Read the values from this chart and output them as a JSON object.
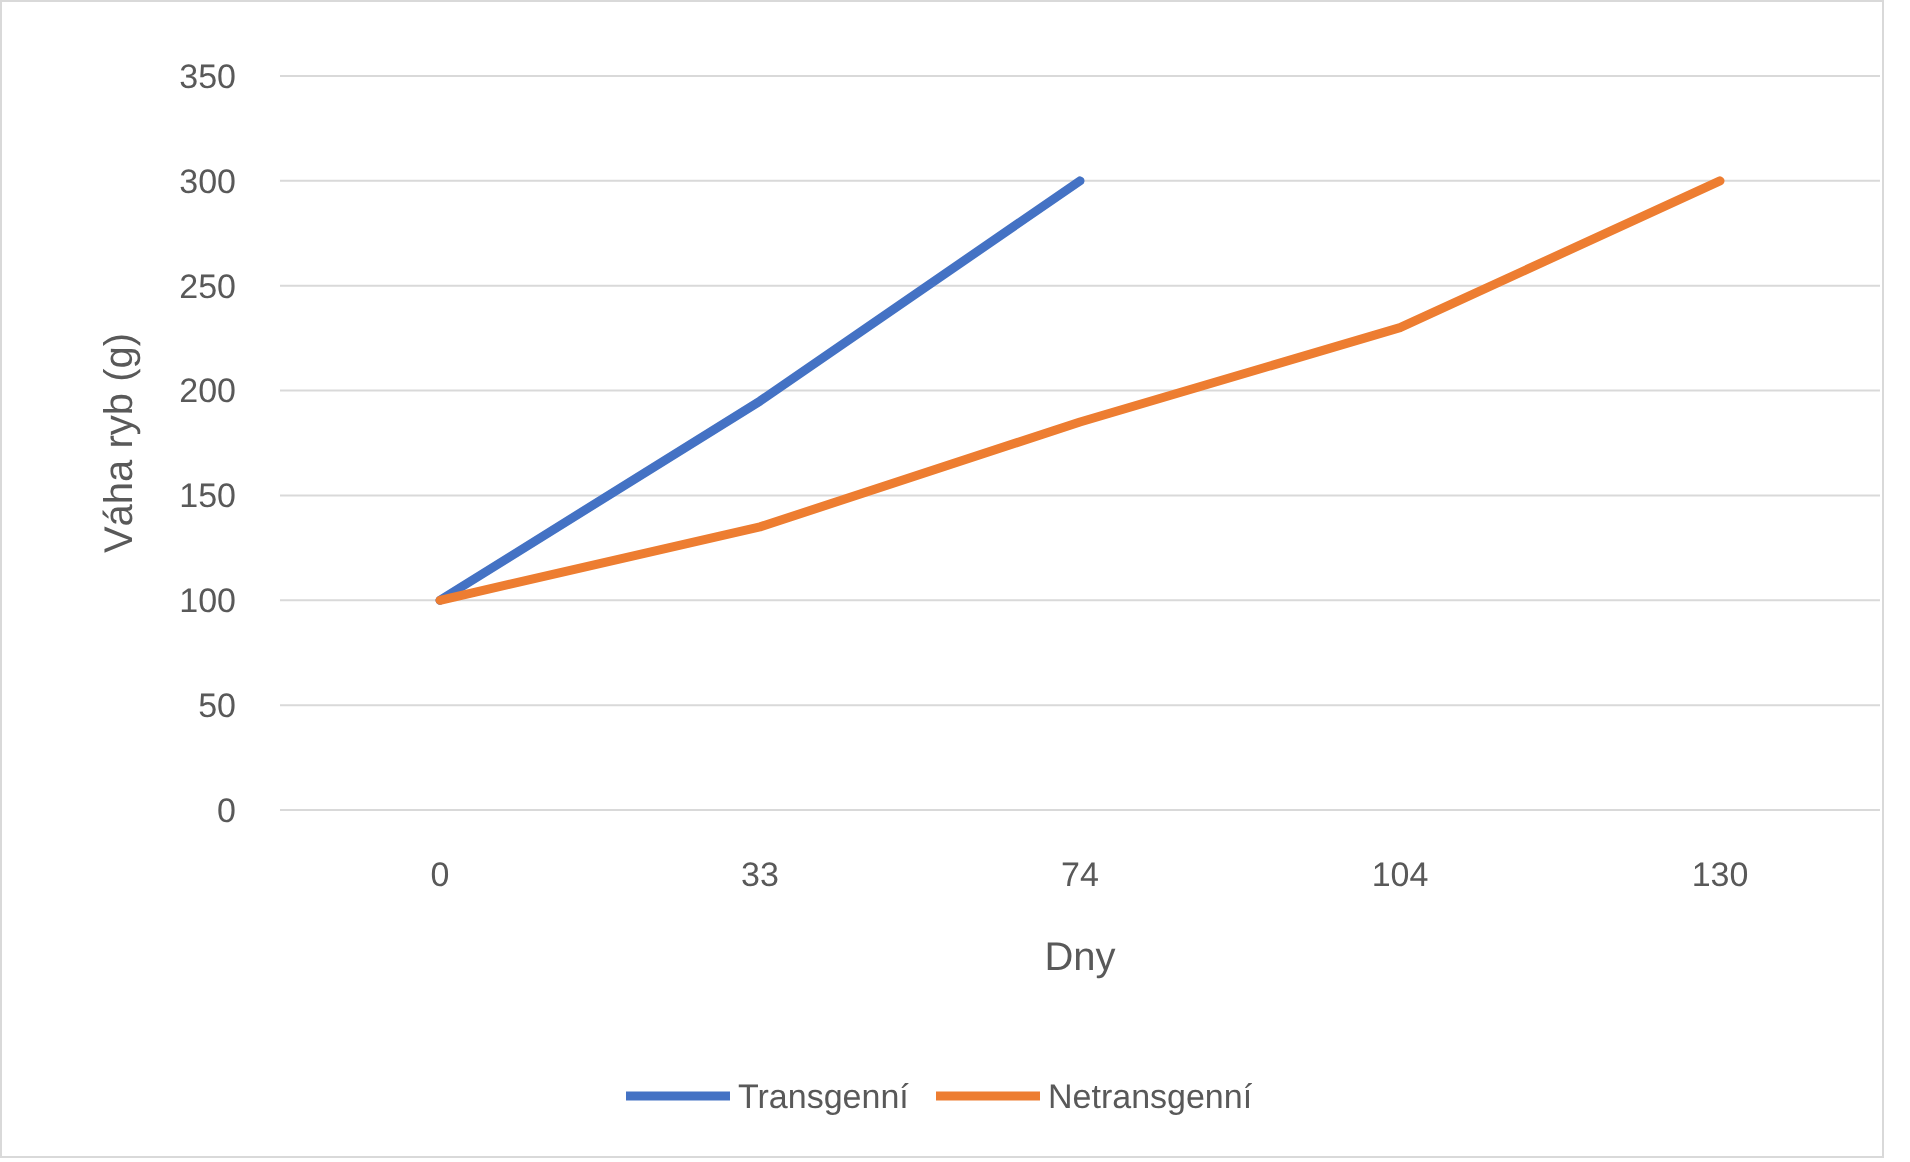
{
  "chart_data": {
    "type": "line",
    "xlabel": "Dny",
    "ylabel": "Váha ryb (g)",
    "categories": [
      "0",
      "33",
      "74",
      "104",
      "130"
    ],
    "series": [
      {
        "name": "Transgenní",
        "color": "#4472c4",
        "values": [
          100,
          195,
          300,
          null,
          null
        ]
      },
      {
        "name": "Netransgenní",
        "color": "#ed7d31",
        "values": [
          100,
          135,
          185,
          230,
          300
        ]
      }
    ],
    "ylim": [
      0,
      350
    ],
    "yticks": [
      0,
      50,
      100,
      150,
      200,
      250,
      300,
      350
    ],
    "grid": "y",
    "legend": "bottom",
    "marker": "none",
    "line_style": "solid"
  }
}
